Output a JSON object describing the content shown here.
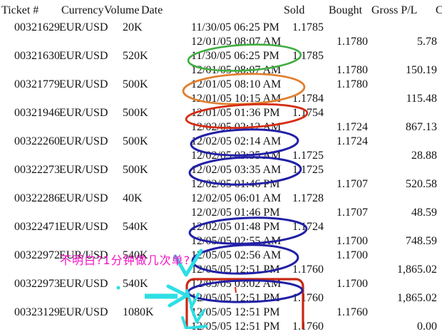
{
  "header": {
    "ticket": "Ticket #",
    "currency": "Currency",
    "volume": "Volume",
    "date": "Date",
    "sold": "Sold",
    "bought": "Bought",
    "gross_pl": "Gross P/L",
    "comm": "C"
  },
  "rows": [
    {
      "ticket": "00321629",
      "currency": "EUR/USD",
      "volume": "20K",
      "open": {
        "date": "11/30/05 06:25 PM",
        "sold": "1.1785",
        "bought": ""
      },
      "close": {
        "date": "12/01/05 08:07 AM",
        "sold": "",
        "bought": "1.1780",
        "gross_pl": "5.78"
      }
    },
    {
      "ticket": "00321630",
      "currency": "EUR/USD",
      "volume": "520K",
      "open": {
        "date": "11/30/05 06:25 PM",
        "sold": "1.1785",
        "bought": ""
      },
      "close": {
        "date": "12/01/05 08:07 AM",
        "sold": "",
        "bought": "1.1780",
        "gross_pl": "150.19"
      }
    },
    {
      "ticket": "00321779",
      "currency": "EUR/USD",
      "volume": "500K",
      "open": {
        "date": "12/01/05 08:10 AM",
        "sold": "",
        "bought": "1.1780"
      },
      "close": {
        "date": "12/01/05 10:15 AM",
        "sold": "1.1784",
        "bought": "",
        "gross_pl": "115.48"
      }
    },
    {
      "ticket": "00321946",
      "currency": "EUR/USD",
      "volume": "500K",
      "open": {
        "date": "12/01/05 01:36 PM",
        "sold": "1.1754",
        "bought": ""
      },
      "close": {
        "date": "12/02/05 02:12 AM",
        "sold": "",
        "bought": "1.1724",
        "gross_pl": "867.13"
      }
    },
    {
      "ticket": "00322260",
      "currency": "EUR/USD",
      "volume": "500K",
      "open": {
        "date": "12/02/05 02:14 AM",
        "sold": "",
        "bought": "1.1724"
      },
      "close": {
        "date": "12/02/05 03:35 AM",
        "sold": "1.1725",
        "bought": "",
        "gross_pl": "28.88"
      }
    },
    {
      "ticket": "00322273",
      "currency": "EUR/USD",
      "volume": "500K",
      "open": {
        "date": "12/02/05 03:35 AM",
        "sold": "1.1725",
        "bought": ""
      },
      "close": {
        "date": "12/02/05 01:46 PM",
        "sold": "",
        "bought": "1.1707",
        "gross_pl": "520.58"
      }
    },
    {
      "ticket": "00322286",
      "currency": "EUR/USD",
      "volume": "40K",
      "open": {
        "date": "12/02/05 06:01 AM",
        "sold": "1.1728",
        "bought": ""
      },
      "close": {
        "date": "12/02/05 01:46 PM",
        "sold": "",
        "bought": "1.1707",
        "gross_pl": "48.59"
      }
    },
    {
      "ticket": "00322471",
      "currency": "EUR/USD",
      "volume": "540K",
      "open": {
        "date": "12/02/05 01:48 PM",
        "sold": "1.1724",
        "bought": ""
      },
      "close": {
        "date": "12/05/05 02:55 AM",
        "sold": "",
        "bought": "1.1700",
        "gross_pl": "748.59"
      }
    },
    {
      "ticket": "00322972",
      "currency": "EUR/USD",
      "volume": "540K",
      "open": {
        "date": "12/05/05 02:56 AM",
        "sold": "",
        "bought": "1.1700"
      },
      "close": {
        "date": "12/05/05 12:51 PM",
        "sold": "1.1760",
        "bought": "",
        "gross_pl": "1,865.02"
      }
    },
    {
      "ticket": "00322973",
      "currency": "EUR/USD",
      "volume": "540K",
      "open": {
        "date": "12/05/05 03:02 AM",
        "sold": "",
        "bought": "1.1700"
      },
      "close": {
        "date": "12/05/05 12:51 PM",
        "sold": "1.1760",
        "bought": "",
        "gross_pl": "1,865.02"
      }
    },
    {
      "ticket": "00323129",
      "currency": "EUR/USD",
      "volume": "1080K",
      "open": {
        "date": "12/05/05 12:51 PM",
        "sold": "",
        "bought": "1.1760"
      },
      "close": {
        "date": "12/05/05 12:51 PM",
        "sold": "1.1760",
        "bought": "",
        "gross_pl": "0.00"
      }
    }
  ],
  "annotation": {
    "note_text": "不明白?1分钟做几次单?",
    "colors": {
      "green": "#3fae3f",
      "orange": "#e08030",
      "red": "#d62c14",
      "blue": "#2120a6",
      "rect_red": "#c82814",
      "cyan": "#2cdfe4",
      "note": "#f414c4"
    }
  }
}
